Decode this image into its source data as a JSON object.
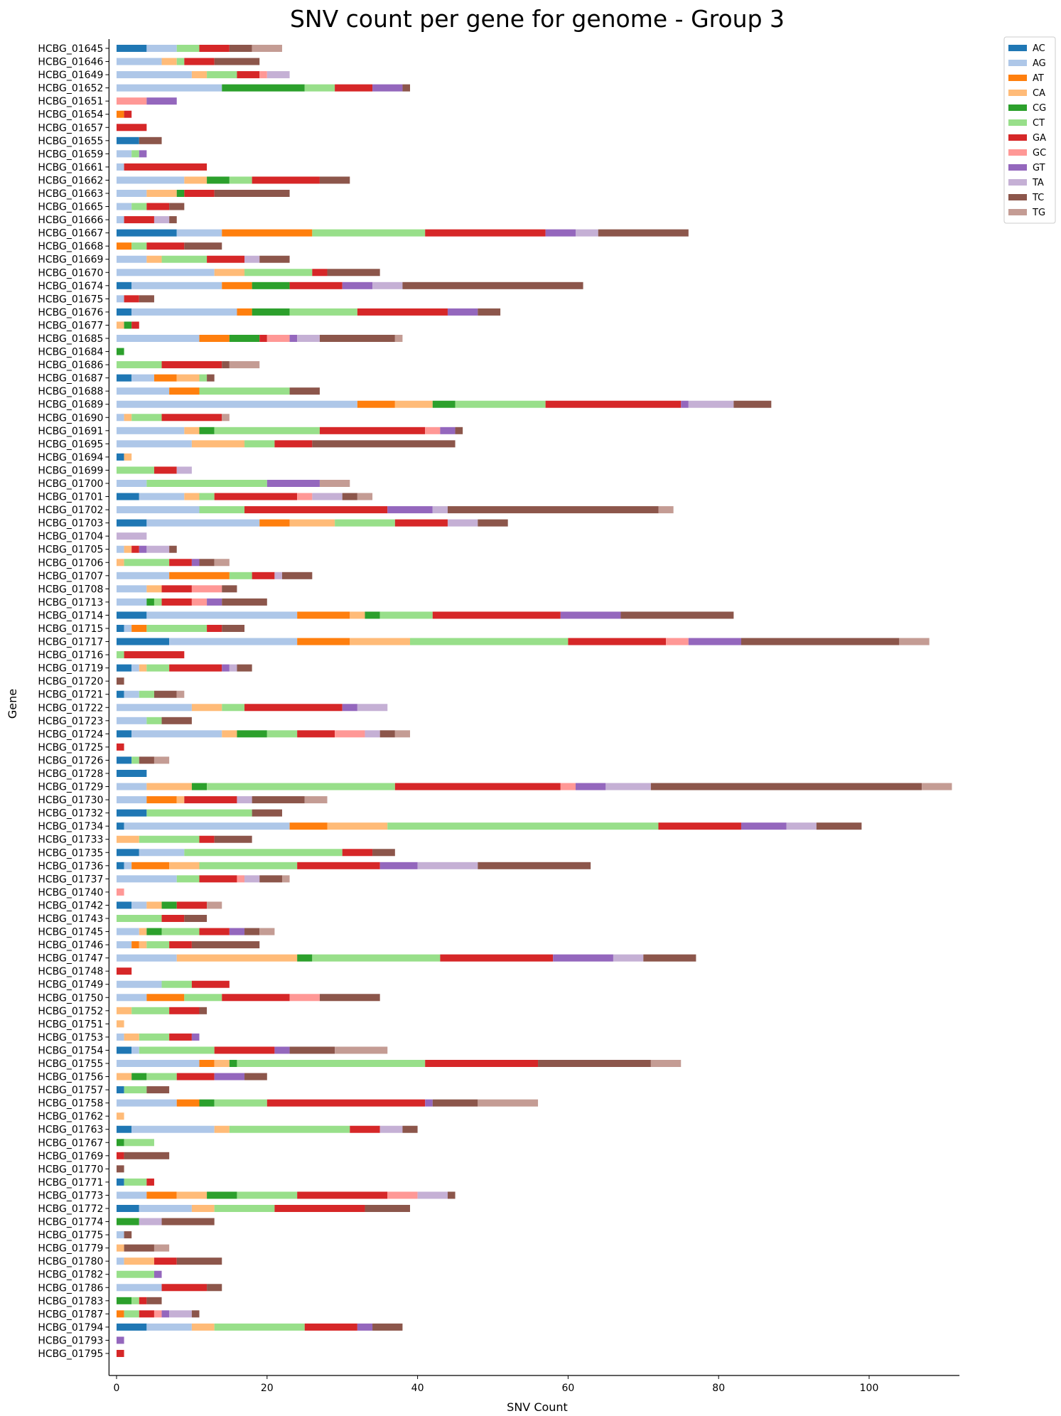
{
  "chart_data": {
    "type": "bar",
    "orientation": "horizontal",
    "stacked": true,
    "title": "SNV count per gene for genome - Group 3",
    "xlabel": "SNV Count",
    "ylabel": "Gene",
    "xlim": [
      -1,
      112
    ],
    "xticks": [
      0,
      20,
      40,
      60,
      80,
      100
    ],
    "grid": false,
    "legend_position": "top-right",
    "categories": [
      "HCBG_01645",
      "HCBG_01646",
      "HCBG_01649",
      "HCBG_01652",
      "HCBG_01651",
      "HCBG_01654",
      "HCBG_01657",
      "HCBG_01655",
      "HCBG_01659",
      "HCBG_01661",
      "HCBG_01662",
      "HCBG_01663",
      "HCBG_01665",
      "HCBG_01666",
      "HCBG_01667",
      "HCBG_01668",
      "HCBG_01669",
      "HCBG_01670",
      "HCBG_01674",
      "HCBG_01675",
      "HCBG_01676",
      "HCBG_01677",
      "HCBG_01685",
      "HCBG_01684",
      "HCBG_01686",
      "HCBG_01687",
      "HCBG_01688",
      "HCBG_01689",
      "HCBG_01690",
      "HCBG_01691",
      "HCBG_01695",
      "HCBG_01694",
      "HCBG_01699",
      "HCBG_01700",
      "HCBG_01701",
      "HCBG_01702",
      "HCBG_01703",
      "HCBG_01704",
      "HCBG_01705",
      "HCBG_01706",
      "HCBG_01707",
      "HCBG_01708",
      "HCBG_01713",
      "HCBG_01714",
      "HCBG_01715",
      "HCBG_01717",
      "HCBG_01716",
      "HCBG_01719",
      "HCBG_01720",
      "HCBG_01721",
      "HCBG_01722",
      "HCBG_01723",
      "HCBG_01724",
      "HCBG_01725",
      "HCBG_01726",
      "HCBG_01728",
      "HCBG_01729",
      "HCBG_01730",
      "HCBG_01732",
      "HCBG_01734",
      "HCBG_01733",
      "HCBG_01735",
      "HCBG_01736",
      "HCBG_01737",
      "HCBG_01740",
      "HCBG_01742",
      "HCBG_01743",
      "HCBG_01745",
      "HCBG_01746",
      "HCBG_01747",
      "HCBG_01748",
      "HCBG_01749",
      "HCBG_01750",
      "HCBG_01752",
      "HCBG_01751",
      "HCBG_01753",
      "HCBG_01754",
      "HCBG_01755",
      "HCBG_01756",
      "HCBG_01757",
      "HCBG_01758",
      "HCBG_01762",
      "HCBG_01763",
      "HCBG_01767",
      "HCBG_01769",
      "HCBG_01770",
      "HCBG_01771",
      "HCBG_01773",
      "HCBG_01772",
      "HCBG_01774",
      "HCBG_01775",
      "HCBG_01779",
      "HCBG_01780",
      "HCBG_01782",
      "HCBG_01786",
      "HCBG_01783",
      "HCBG_01787",
      "HCBG_01794",
      "HCBG_01793",
      "HCBG_01795"
    ],
    "series": [
      {
        "name": "AC",
        "color": "#1f77b4",
        "values": [
          4,
          0,
          0,
          0,
          0,
          0,
          0,
          3,
          0,
          0,
          0,
          0,
          0,
          0,
          8,
          0,
          0,
          0,
          2,
          0,
          2,
          0,
          0,
          0,
          0,
          2,
          0,
          0,
          0,
          0,
          0,
          1,
          0,
          0,
          3,
          0,
          4,
          0,
          0,
          0,
          0,
          0,
          0,
          4,
          1,
          7,
          0,
          2,
          0,
          1,
          0,
          0,
          2,
          0,
          2,
          4,
          0,
          0,
          4,
          1,
          0,
          3,
          1,
          0,
          0,
          2,
          0,
          0,
          0,
          0,
          0,
          0,
          0,
          0,
          0,
          0,
          2,
          0,
          0,
          1,
          0,
          0,
          2,
          0,
          0,
          0,
          1,
          0,
          3,
          0,
          0,
          0,
          0,
          0,
          0,
          0,
          0,
          4,
          0,
          0
        ]
      },
      {
        "name": "AG",
        "color": "#aec7e8",
        "values": [
          4,
          6,
          10,
          14,
          0,
          0,
          0,
          0,
          2,
          1,
          9,
          4,
          2,
          1,
          6,
          0,
          4,
          13,
          12,
          1,
          14,
          0,
          11,
          0,
          0,
          3,
          7,
          32,
          1,
          9,
          10,
          0,
          0,
          4,
          6,
          11,
          15,
          0,
          1,
          0,
          7,
          4,
          4,
          20,
          1,
          17,
          0,
          1,
          0,
          2,
          10,
          4,
          12,
          0,
          0,
          0,
          4,
          4,
          0,
          22,
          0,
          6,
          1,
          8,
          0,
          2,
          0,
          3,
          2,
          8,
          0,
          6,
          4,
          0,
          0,
          1,
          1,
          11,
          0,
          0,
          8,
          0,
          11,
          0,
          0,
          0,
          0,
          4,
          7,
          0,
          1,
          0,
          1,
          0,
          6,
          0,
          0,
          6,
          0,
          0
        ]
      },
      {
        "name": "AT",
        "color": "#ff7f0e",
        "values": [
          0,
          0,
          0,
          0,
          0,
          1,
          0,
          0,
          0,
          0,
          0,
          0,
          0,
          0,
          12,
          2,
          0,
          0,
          4,
          0,
          2,
          0,
          4,
          0,
          0,
          3,
          4,
          5,
          0,
          0,
          0,
          0,
          0,
          0,
          0,
          0,
          4,
          0,
          0,
          0,
          8,
          0,
          0,
          7,
          2,
          7,
          0,
          0,
          0,
          0,
          0,
          0,
          0,
          0,
          0,
          0,
          0,
          4,
          0,
          5,
          0,
          0,
          5,
          0,
          0,
          0,
          0,
          0,
          1,
          0,
          0,
          0,
          5,
          0,
          0,
          0,
          0,
          2,
          0,
          0,
          3,
          0,
          0,
          0,
          0,
          0,
          0,
          4,
          0,
          0,
          0,
          0,
          0,
          0,
          0,
          0,
          1,
          0,
          0,
          0
        ]
      },
      {
        "name": "CA",
        "color": "#ffbb78",
        "values": [
          0,
          2,
          2,
          0,
          0,
          0,
          0,
          0,
          0,
          0,
          3,
          4,
          0,
          0,
          0,
          0,
          2,
          4,
          0,
          0,
          0,
          1,
          0,
          0,
          0,
          3,
          0,
          5,
          1,
          2,
          7,
          1,
          0,
          0,
          2,
          0,
          6,
          0,
          1,
          1,
          0,
          2,
          0,
          2,
          0,
          8,
          0,
          1,
          0,
          0,
          4,
          0,
          2,
          0,
          0,
          0,
          6,
          1,
          0,
          8,
          3,
          0,
          4,
          0,
          0,
          2,
          0,
          1,
          1,
          16,
          0,
          0,
          0,
          2,
          1,
          2,
          0,
          2,
          2,
          0,
          0,
          1,
          2,
          0,
          0,
          0,
          0,
          4,
          3,
          0,
          0,
          1,
          4,
          0,
          0,
          0,
          0,
          3,
          0,
          0
        ]
      },
      {
        "name": "CG",
        "color": "#2ca02c",
        "values": [
          0,
          0,
          0,
          11,
          0,
          0,
          0,
          0,
          0,
          0,
          3,
          1,
          0,
          0,
          0,
          0,
          0,
          0,
          5,
          0,
          5,
          1,
          4,
          1,
          0,
          0,
          0,
          3,
          0,
          2,
          0,
          0,
          0,
          0,
          0,
          0,
          0,
          0,
          0,
          0,
          0,
          0,
          1,
          2,
          0,
          0,
          0,
          0,
          0,
          0,
          0,
          0,
          4,
          0,
          0,
          0,
          2,
          0,
          0,
          0,
          0,
          0,
          0,
          0,
          0,
          2,
          0,
          2,
          0,
          2,
          0,
          0,
          0,
          0,
          0,
          0,
          0,
          1,
          2,
          0,
          2,
          0,
          0,
          1,
          0,
          0,
          0,
          4,
          0,
          3,
          0,
          0,
          0,
          0,
          0,
          2,
          0,
          0,
          0,
          0
        ]
      },
      {
        "name": "CT",
        "color": "#98df8a",
        "values": [
          3,
          1,
          4,
          4,
          0,
          0,
          0,
          0,
          1,
          0,
          3,
          0,
          2,
          0,
          15,
          2,
          6,
          9,
          0,
          0,
          9,
          0,
          0,
          0,
          6,
          1,
          12,
          12,
          4,
          14,
          4,
          0,
          5,
          16,
          2,
          6,
          8,
          0,
          0,
          6,
          3,
          0,
          1,
          7,
          8,
          21,
          1,
          3,
          0,
          2,
          3,
          2,
          4,
          0,
          1,
          0,
          25,
          0,
          14,
          36,
          8,
          21,
          13,
          3,
          0,
          0,
          6,
          5,
          3,
          17,
          0,
          4,
          5,
          5,
          0,
          4,
          10,
          25,
          4,
          3,
          7,
          0,
          16,
          4,
          0,
          0,
          3,
          8,
          8,
          0,
          0,
          0,
          0,
          5,
          0,
          1,
          2,
          12,
          0,
          0
        ]
      },
      {
        "name": "GA",
        "color": "#d62728",
        "values": [
          4,
          4,
          3,
          5,
          0,
          1,
          4,
          0,
          0,
          11,
          9,
          4,
          3,
          4,
          16,
          5,
          5,
          2,
          7,
          2,
          12,
          1,
          1,
          0,
          8,
          0,
          0,
          18,
          8,
          14,
          5,
          0,
          3,
          0,
          11,
          19,
          7,
          0,
          1,
          3,
          3,
          4,
          4,
          17,
          2,
          13,
          8,
          7,
          0,
          0,
          13,
          0,
          5,
          1,
          0,
          0,
          22,
          7,
          0,
          11,
          2,
          4,
          11,
          5,
          0,
          4,
          3,
          4,
          3,
          15,
          2,
          5,
          9,
          4,
          0,
          3,
          8,
          15,
          5,
          0,
          21,
          0,
          4,
          0,
          1,
          0,
          1,
          12,
          12,
          0,
          0,
          0,
          3,
          0,
          6,
          1,
          2,
          7,
          0,
          1
        ]
      },
      {
        "name": "GC",
        "color": "#ff9896",
        "values": [
          0,
          0,
          1,
          0,
          4,
          0,
          0,
          0,
          0,
          0,
          0,
          0,
          0,
          0,
          0,
          0,
          0,
          0,
          0,
          0,
          0,
          0,
          3,
          0,
          0,
          0,
          0,
          0,
          0,
          2,
          0,
          0,
          0,
          0,
          2,
          0,
          0,
          0,
          0,
          0,
          0,
          4,
          2,
          0,
          0,
          3,
          0,
          0,
          0,
          0,
          0,
          0,
          4,
          0,
          0,
          0,
          2,
          0,
          0,
          0,
          0,
          0,
          0,
          1,
          1,
          0,
          0,
          0,
          0,
          0,
          0,
          0,
          4,
          0,
          0,
          0,
          0,
          0,
          0,
          0,
          0,
          0,
          0,
          0,
          0,
          0,
          0,
          4,
          0,
          0,
          0,
          0,
          0,
          0,
          0,
          0,
          1,
          0,
          0,
          0
        ]
      },
      {
        "name": "GT",
        "color": "#9467bd",
        "values": [
          0,
          0,
          0,
          4,
          4,
          0,
          0,
          0,
          1,
          0,
          0,
          0,
          0,
          0,
          4,
          0,
          0,
          0,
          4,
          0,
          4,
          0,
          1,
          0,
          0,
          0,
          0,
          1,
          0,
          2,
          0,
          0,
          0,
          7,
          0,
          6,
          0,
          0,
          1,
          1,
          0,
          0,
          2,
          8,
          0,
          7,
          0,
          1,
          0,
          0,
          2,
          0,
          0,
          0,
          0,
          0,
          4,
          0,
          0,
          6,
          0,
          0,
          5,
          0,
          0,
          0,
          0,
          2,
          0,
          8,
          0,
          0,
          0,
          0,
          0,
          1,
          2,
          0,
          4,
          0,
          1,
          0,
          0,
          0,
          0,
          0,
          0,
          0,
          0,
          0,
          0,
          0,
          0,
          1,
          0,
          0,
          1,
          2,
          1,
          0
        ]
      },
      {
        "name": "TA",
        "color": "#c5b0d5",
        "values": [
          0,
          0,
          3,
          0,
          0,
          0,
          0,
          0,
          0,
          0,
          0,
          0,
          0,
          2,
          3,
          0,
          2,
          0,
          4,
          0,
          0,
          0,
          3,
          0,
          0,
          0,
          0,
          6,
          0,
          0,
          0,
          0,
          2,
          0,
          4,
          2,
          4,
          4,
          3,
          0,
          1,
          0,
          0,
          0,
          0,
          0,
          0,
          1,
          0,
          0,
          4,
          0,
          2,
          0,
          0,
          0,
          6,
          2,
          0,
          4,
          0,
          0,
          8,
          2,
          0,
          0,
          0,
          0,
          0,
          4,
          0,
          0,
          0,
          0,
          0,
          0,
          0,
          0,
          0,
          0,
          0,
          0,
          3,
          0,
          0,
          0,
          0,
          4,
          0,
          3,
          0,
          0,
          0,
          0,
          0,
          0,
          3,
          0,
          0,
          0
        ]
      },
      {
        "name": "TC",
        "color": "#8c564b",
        "values": [
          3,
          6,
          0,
          1,
          0,
          0,
          0,
          3,
          0,
          0,
          4,
          10,
          2,
          1,
          12,
          5,
          4,
          7,
          24,
          2,
          3,
          0,
          10,
          0,
          1,
          1,
          4,
          5,
          0,
          1,
          19,
          0,
          0,
          0,
          2,
          28,
          4,
          0,
          1,
          2,
          4,
          2,
          6,
          15,
          3,
          21,
          0,
          2,
          1,
          3,
          0,
          4,
          2,
          0,
          2,
          0,
          36,
          7,
          4,
          6,
          5,
          3,
          15,
          3,
          0,
          0,
          3,
          2,
          9,
          7,
          0,
          0,
          8,
          1,
          0,
          0,
          6,
          15,
          3,
          3,
          6,
          0,
          2,
          0,
          6,
          1,
          0,
          1,
          6,
          7,
          1,
          4,
          6,
          0,
          2,
          2,
          1,
          4,
          0,
          0
        ]
      },
      {
        "name": "TG",
        "color": "#c49c94",
        "values": [
          4,
          0,
          0,
          0,
          0,
          0,
          0,
          0,
          0,
          0,
          0,
          0,
          0,
          0,
          0,
          0,
          0,
          0,
          0,
          0,
          0,
          0,
          1,
          0,
          4,
          0,
          0,
          0,
          1,
          0,
          0,
          0,
          0,
          4,
          2,
          2,
          0,
          0,
          0,
          2,
          0,
          0,
          0,
          0,
          0,
          4,
          0,
          0,
          0,
          1,
          0,
          0,
          2,
          0,
          2,
          0,
          4,
          3,
          0,
          0,
          0,
          0,
          0,
          1,
          0,
          2,
          0,
          2,
          0,
          0,
          0,
          0,
          0,
          0,
          0,
          0,
          7,
          4,
          0,
          0,
          8,
          0,
          0,
          0,
          0,
          0,
          0,
          0,
          0,
          0,
          0,
          2,
          0,
          0,
          0,
          0,
          0,
          0,
          0,
          0
        ]
      }
    ]
  }
}
